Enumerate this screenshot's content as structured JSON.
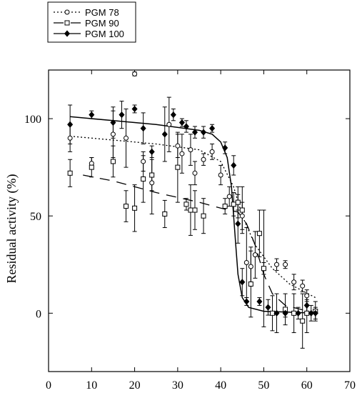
{
  "chart_data": {
    "type": "scatter",
    "xlabel": "",
    "ylabel": "Residual activity (%)",
    "xlim": [
      0,
      70
    ],
    "ylim": [
      -30,
      125
    ],
    "x_ticks": [
      0,
      10,
      20,
      30,
      40,
      50,
      60,
      70
    ],
    "y_ticks": [
      0,
      50,
      100
    ],
    "grid": false,
    "legend_position": "top-left, outside plot",
    "series": [
      {
        "name": "PGM 78",
        "marker": "circle-open",
        "line": "dotted",
        "points": [
          {
            "x": 5,
            "y": 90,
            "err": 7
          },
          {
            "x": 10,
            "y": 77,
            "err": 3
          },
          {
            "x": 15,
            "y": 92,
            "err": 12
          },
          {
            "x": 18,
            "y": 90,
            "err": 15
          },
          {
            "x": 22,
            "y": 78,
            "err": 5
          },
          {
            "x": 24,
            "y": 67,
            "err": 16
          },
          {
            "x": 28,
            "y": 97,
            "err": 14
          },
          {
            "x": 30,
            "y": 86,
            "err": 6
          },
          {
            "x": 31,
            "y": 82,
            "err": 10
          },
          {
            "x": 33,
            "y": 84,
            "err": 8
          },
          {
            "x": 34,
            "y": 72,
            "err": 6
          },
          {
            "x": 36,
            "y": 79,
            "err": 3
          },
          {
            "x": 38,
            "y": 83,
            "err": 4
          },
          {
            "x": 40,
            "y": 71,
            "err": 5
          },
          {
            "x": 42,
            "y": 60,
            "err": 5
          },
          {
            "x": 44,
            "y": 57,
            "err": 4
          },
          {
            "x": 45,
            "y": 50,
            "err": 7
          },
          {
            "x": 46,
            "y": 26,
            "err": 18
          },
          {
            "x": 47,
            "y": 24,
            "err": 10
          },
          {
            "x": 48,
            "y": 30,
            "err": 12
          },
          {
            "x": 50,
            "y": 23,
            "err": 3
          },
          {
            "x": 53,
            "y": 25,
            "err": 3
          },
          {
            "x": 55,
            "y": 25,
            "err": 2
          },
          {
            "x": 57,
            "y": 16,
            "err": 4
          },
          {
            "x": 59,
            "y": 14,
            "err": 3
          },
          {
            "x": 60,
            "y": 9,
            "err": 3
          },
          {
            "x": 20,
            "y": 123,
            "err": 1
          }
        ],
        "fit": [
          [
            5,
            91
          ],
          [
            15,
            89
          ],
          [
            25,
            87
          ],
          [
            35,
            84
          ],
          [
            40,
            78
          ],
          [
            43,
            65
          ],
          [
            45,
            50
          ],
          [
            48,
            35
          ],
          [
            52,
            23
          ],
          [
            56,
            15
          ],
          [
            62,
            8
          ]
        ]
      },
      {
        "name": "PGM 90",
        "marker": "square-open",
        "line": "dashed",
        "points": [
          {
            "x": 5,
            "y": 72,
            "err": 7
          },
          {
            "x": 10,
            "y": 75,
            "err": 5
          },
          {
            "x": 15,
            "y": 78,
            "err": 8
          },
          {
            "x": 18,
            "y": 55,
            "err": 8
          },
          {
            "x": 20,
            "y": 54,
            "err": 12
          },
          {
            "x": 22,
            "y": 69,
            "err": 12
          },
          {
            "x": 24,
            "y": 71,
            "err": 8
          },
          {
            "x": 27,
            "y": 51,
            "err": 7
          },
          {
            "x": 30,
            "y": 75,
            "err": 18
          },
          {
            "x": 32,
            "y": 56,
            "err": 3
          },
          {
            "x": 33,
            "y": 53,
            "err": 13
          },
          {
            "x": 34,
            "y": 53,
            "err": 10
          },
          {
            "x": 36,
            "y": 50,
            "err": 9
          },
          {
            "x": 41,
            "y": 55,
            "err": 4
          },
          {
            "x": 43,
            "y": 56,
            "err": 6
          },
          {
            "x": 44,
            "y": 57,
            "err": 8
          },
          {
            "x": 45,
            "y": 53,
            "err": 12
          },
          {
            "x": 47,
            "y": 15,
            "err": 17
          },
          {
            "x": 49,
            "y": 41,
            "err": 12
          },
          {
            "x": 50,
            "y": 23,
            "err": 30
          },
          {
            "x": 52,
            "y": 0,
            "err": 9
          },
          {
            "x": 55,
            "y": 2,
            "err": 8
          },
          {
            "x": 57,
            "y": 0,
            "err": 10
          },
          {
            "x": 59,
            "y": -4,
            "err": 14
          },
          {
            "x": 60,
            "y": 0,
            "err": 10
          },
          {
            "x": 62,
            "y": 1,
            "err": 5
          }
        ],
        "fit": [
          [
            8,
            71
          ],
          [
            15,
            68
          ],
          [
            25,
            62
          ],
          [
            35,
            57
          ],
          [
            40,
            54
          ],
          [
            44,
            52
          ],
          [
            46,
            46
          ],
          [
            48,
            35
          ],
          [
            50,
            20
          ],
          [
            52,
            10
          ],
          [
            55,
            4
          ],
          [
            62,
            0
          ]
        ]
      },
      {
        "name": "PGM 100",
        "marker": "diamond-filled",
        "line": "solid",
        "points": [
          {
            "x": 5,
            "y": 97,
            "err": 10
          },
          {
            "x": 10,
            "y": 102,
            "err": 2
          },
          {
            "x": 15,
            "y": 98,
            "err": 8
          },
          {
            "x": 17,
            "y": 102,
            "err": 7
          },
          {
            "x": 20,
            "y": 105,
            "err": 2
          },
          {
            "x": 22,
            "y": 95,
            "err": 8
          },
          {
            "x": 24,
            "y": 83,
            "err": 3
          },
          {
            "x": 27,
            "y": 92,
            "err": 14
          },
          {
            "x": 29,
            "y": 102,
            "err": 3
          },
          {
            "x": 31,
            "y": 98,
            "err": 2
          },
          {
            "x": 32,
            "y": 96,
            "err": 3
          },
          {
            "x": 34,
            "y": 93,
            "err": 3
          },
          {
            "x": 36,
            "y": 93,
            "err": 3
          },
          {
            "x": 38,
            "y": 95,
            "err": 2
          },
          {
            "x": 41,
            "y": 85,
            "err": 3
          },
          {
            "x": 43,
            "y": 76,
            "err": 5
          },
          {
            "x": 44,
            "y": 46,
            "err": 10
          },
          {
            "x": 45,
            "y": 16,
            "err": 7
          },
          {
            "x": 46,
            "y": 6,
            "err": 2
          },
          {
            "x": 49,
            "y": 6,
            "err": 2
          },
          {
            "x": 51,
            "y": 3,
            "err": 4
          },
          {
            "x": 53,
            "y": 0,
            "err": 10
          },
          {
            "x": 55,
            "y": 0,
            "err": 2
          },
          {
            "x": 58,
            "y": 0,
            "err": 3
          },
          {
            "x": 60,
            "y": 4,
            "err": 3
          },
          {
            "x": 61,
            "y": 0,
            "err": 4
          },
          {
            "x": 62,
            "y": 0,
            "err": 3
          }
        ],
        "fit": [
          [
            5,
            101
          ],
          [
            15,
            99
          ],
          [
            25,
            97
          ],
          [
            35,
            94
          ],
          [
            38,
            92
          ],
          [
            40,
            88
          ],
          [
            41.5,
            80
          ],
          [
            42.5,
            65
          ],
          [
            43,
            50
          ],
          [
            43.5,
            35
          ],
          [
            44,
            20
          ],
          [
            45,
            8
          ],
          [
            46.5,
            3
          ],
          [
            50,
            1
          ],
          [
            62,
            0
          ]
        ]
      }
    ]
  }
}
